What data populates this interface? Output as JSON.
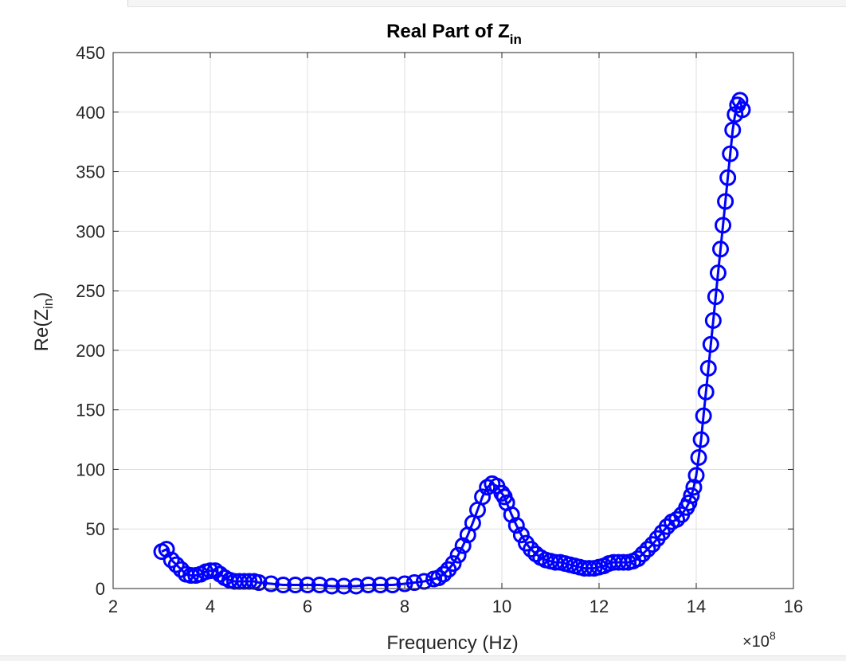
{
  "chart_data": {
    "type": "line",
    "title_main": "Real  Part  of  Z",
    "title_sub": "in",
    "xlabel": "Frequency (Hz)",
    "ylabel_main": "Re(Z",
    "ylabel_sub": "in",
    "ylabel_close": ")",
    "x_exponent_base": "×10",
    "x_exponent_power": "8",
    "xlim": [
      2,
      16
    ],
    "ylim": [
      0,
      450
    ],
    "x_ticks": [
      2,
      4,
      6,
      8,
      10,
      12,
      14,
      16
    ],
    "y_ticks": [
      0,
      50,
      100,
      150,
      200,
      250,
      300,
      350,
      400,
      450
    ],
    "grid": true,
    "x_unit_scale": "1e8",
    "series": [
      {
        "color": "#0000ff",
        "marker": "circle",
        "x": [
          3.0,
          3.1,
          3.2,
          3.3,
          3.4,
          3.5,
          3.6,
          3.7,
          3.8,
          3.9,
          4.0,
          4.1,
          4.2,
          4.3,
          4.4,
          4.5,
          4.6,
          4.7,
          4.8,
          4.9,
          5.0,
          5.25,
          5.5,
          5.75,
          6.0,
          6.25,
          6.5,
          6.75,
          7.0,
          7.25,
          7.5,
          7.75,
          8.0,
          8.2,
          8.4,
          8.6,
          8.7,
          8.8,
          8.9,
          9.0,
          9.1,
          9.2,
          9.3,
          9.4,
          9.5,
          9.6,
          9.7,
          9.8,
          9.9,
          10.0,
          10.05,
          10.1,
          10.2,
          10.3,
          10.4,
          10.5,
          10.6,
          10.7,
          10.8,
          10.9,
          11.0,
          11.1,
          11.2,
          11.3,
          11.4,
          11.5,
          11.6,
          11.7,
          11.8,
          11.9,
          12.0,
          12.1,
          12.2,
          12.3,
          12.4,
          12.5,
          12.6,
          12.7,
          12.8,
          12.9,
          13.0,
          13.1,
          13.2,
          13.3,
          13.4,
          13.5,
          13.6,
          13.7,
          13.8,
          13.85,
          13.9,
          13.95,
          14.0,
          14.05,
          14.1,
          14.15,
          14.2,
          14.25,
          14.3,
          14.35,
          14.4,
          14.45,
          14.5,
          14.55,
          14.6,
          14.65,
          14.7,
          14.75,
          14.8,
          14.85,
          14.9,
          14.95
        ],
        "values": [
          31,
          33,
          24,
          20,
          16,
          12,
          11,
          11,
          12,
          14,
          15,
          15,
          12,
          9,
          7,
          6,
          6,
          6,
          6,
          6,
          5,
          4,
          3,
          3,
          3,
          3,
          2,
          2,
          2,
          3,
          3,
          3,
          4,
          5,
          6,
          8,
          9,
          12,
          16,
          21,
          28,
          36,
          45,
          55,
          66,
          77,
          85,
          88,
          86,
          80,
          77,
          72,
          62,
          53,
          45,
          38,
          33,
          29,
          26,
          24,
          23,
          22,
          22,
          21,
          20,
          19,
          18,
          17,
          17,
          17,
          18,
          19,
          21,
          22,
          22,
          22,
          22,
          23,
          25,
          29,
          33,
          37,
          42,
          47,
          52,
          56,
          58,
          62,
          68,
          72,
          78,
          85,
          95,
          110,
          125,
          145,
          165,
          185,
          205,
          225,
          245,
          265,
          285,
          305,
          325,
          345,
          365,
          385,
          398,
          406,
          410,
          402
        ]
      }
    ]
  }
}
